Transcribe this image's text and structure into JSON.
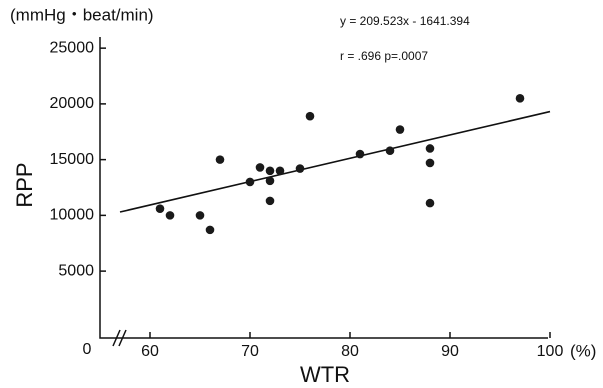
{
  "chart_data": {
    "type": "scatter",
    "y_unit_label": "(mmHg・beat/min)",
    "y_label": "RPP",
    "x_label": "WTR",
    "x_unit": "(%)",
    "x_origin_label": "0",
    "annotations": [
      "y = 209.523x - 1641.394",
      "r = .696  p=.0007"
    ],
    "x": [
      61,
      62,
      65,
      66,
      67,
      70,
      71,
      72,
      72,
      72,
      73,
      75,
      76,
      81,
      84,
      85,
      88,
      88,
      88,
      97
    ],
    "values": [
      10600,
      10000,
      10000,
      8700,
      15000,
      13000,
      14300,
      14000,
      13100,
      11300,
      14000,
      14200,
      18900,
      15500,
      15800,
      17700,
      16000,
      14700,
      11100,
      20500
    ],
    "color": "#1a1a1a",
    "fit": {
      "slope": 209.523,
      "intercept": -1641.394,
      "x_range": [
        57,
        100
      ]
    },
    "xlim": [
      55,
      100
    ],
    "xticks": [
      60,
      70,
      80,
      90,
      100
    ],
    "ylim": [
      -1000,
      26000
    ],
    "yticks": [
      5000,
      10000,
      15000,
      20000,
      25000
    ],
    "grid": false
  }
}
